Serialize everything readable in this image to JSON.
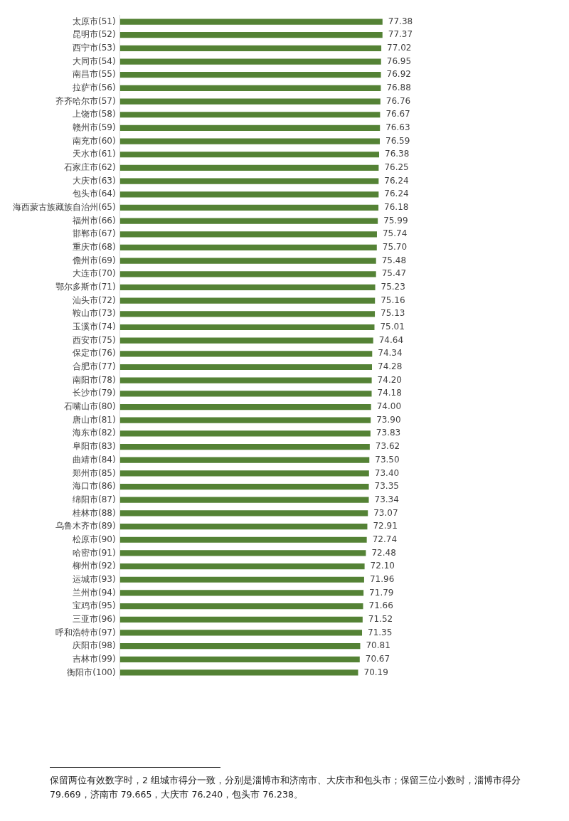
{
  "chart_data": {
    "type": "bar",
    "orientation": "horizontal",
    "categories": [
      "太原市(51)",
      "昆明市(52)",
      "西宁市(53)",
      "大同市(54)",
      "南昌市(55)",
      "拉萨市(56)",
      "齐齐哈尔市(57)",
      "上饶市(58)",
      "赣州市(59)",
      "南充市(60)",
      "天水市(61)",
      "石家庄市(62)",
      "大庆市(63)",
      "包头市(64)",
      "海西蒙古族藏族自治州(65)",
      "福州市(66)",
      "邯郸市(67)",
      "重庆市(68)",
      "儋州市(69)",
      "大连市(70)",
      "鄂尔多斯市(71)",
      "汕头市(72)",
      "鞍山市(73)",
      "玉溪市(74)",
      "西安市(75)",
      "保定市(76)",
      "合肥市(77)",
      "南阳市(78)",
      "长沙市(79)",
      "石嘴山市(80)",
      "唐山市(81)",
      "海东市(82)",
      "阜阳市(83)",
      "曲靖市(84)",
      "郑州市(85)",
      "海口市(86)",
      "绵阳市(87)",
      "桂林市(88)",
      "乌鲁木齐市(89)",
      "松原市(90)",
      "哈密市(91)",
      "柳州市(92)",
      "运城市(93)",
      "兰州市(94)",
      "宝鸡市(95)",
      "三亚市(96)",
      "呼和浩特市(97)",
      "庆阳市(98)",
      "吉林市(99)",
      "衡阳市(100)"
    ],
    "values": [
      77.38,
      77.37,
      77.02,
      76.95,
      76.92,
      76.88,
      76.76,
      76.67,
      76.63,
      76.59,
      76.38,
      76.25,
      76.24,
      76.24,
      76.18,
      75.99,
      75.74,
      75.7,
      75.48,
      75.47,
      75.23,
      75.16,
      75.13,
      75.01,
      74.64,
      74.34,
      74.28,
      74.2,
      74.18,
      74.0,
      73.9,
      73.83,
      73.62,
      73.5,
      73.4,
      73.35,
      73.34,
      73.07,
      72.91,
      72.74,
      72.48,
      72.1,
      71.96,
      71.79,
      71.66,
      71.52,
      71.35,
      70.81,
      70.67,
      70.19
    ],
    "value_labels": [
      "77.38",
      "77.37",
      "77.02",
      "76.95",
      "76.92",
      "76.88",
      "76.76",
      "76.67",
      "76.63",
      "76.59",
      "76.38",
      "76.25",
      "76.24",
      "76.24",
      "76.18",
      "75.99",
      "75.74",
      "75.70",
      "75.48",
      "75.47",
      "75.23",
      "75.16",
      "75.13",
      "75.01",
      "74.64",
      "74.34",
      "74.28",
      "74.20",
      "74.18",
      "74.00",
      "73.90",
      "73.83",
      "73.62",
      "73.50",
      "73.40",
      "73.35",
      "73.34",
      "73.07",
      "72.91",
      "72.74",
      "72.48",
      "72.10",
      "71.96",
      "71.79",
      "71.66",
      "71.52",
      "71.35",
      "70.81",
      "70.67",
      "70.19"
    ],
    "color": "#548235",
    "tick_labels": "y",
    "annotations": [
      "保留两位有效数字时，2 组城市得分一致，分别是淄博市和济南市、大庆市和包头市；保留三位小数时，淄博市得分 79.669，济南市 79.665，大庆市 76.240，包头市 76.238。"
    ]
  }
}
